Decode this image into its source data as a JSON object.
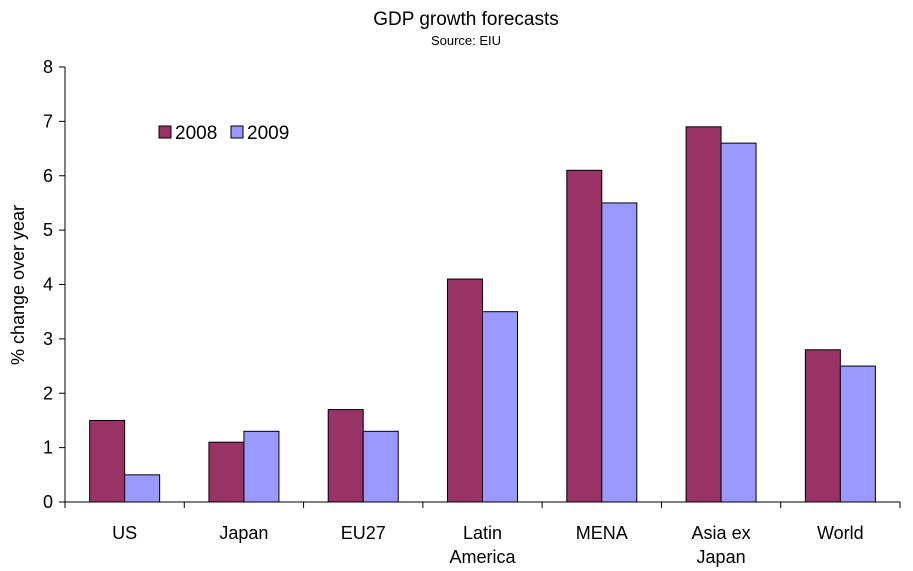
{
  "chart_data": {
    "type": "bar",
    "title": "GDP growth forecasts",
    "subtitle": "Source: EIU",
    "xlabel": "",
    "ylabel": "% change over year",
    "ylim": [
      0,
      8
    ],
    "yticks": [
      0,
      1,
      2,
      3,
      4,
      5,
      6,
      7,
      8
    ],
    "grid": false,
    "legend_position": "top-left",
    "categories": [
      [
        "US"
      ],
      [
        "Japan"
      ],
      [
        "EU27"
      ],
      [
        "Latin",
        "America"
      ],
      [
        "MENA"
      ],
      [
        "Asia ex",
        "Japan"
      ],
      [
        "World"
      ]
    ],
    "series": [
      {
        "name": "2008",
        "color": "#993366",
        "values": [
          1.5,
          1.1,
          1.7,
          4.1,
          6.1,
          6.9,
          2.8
        ]
      },
      {
        "name": "2009",
        "color": "#9999FF",
        "values": [
          0.5,
          1.3,
          1.3,
          3.5,
          5.5,
          6.6,
          2.5
        ]
      }
    ]
  }
}
